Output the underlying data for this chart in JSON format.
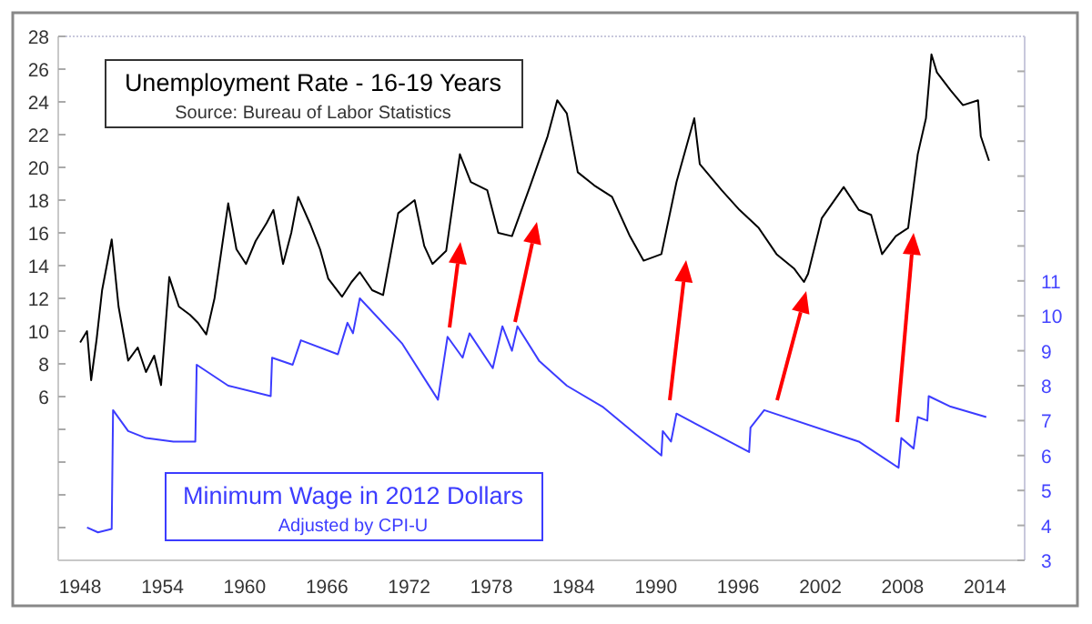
{
  "chart_data": {
    "type": "line",
    "title": "Unemployment Rate - 16-19 Years",
    "subtitle": "Source: Bureau of Labor Statistics",
    "annotations": [
      "Adjusted by CPI-U"
    ],
    "grid": false,
    "xlim": [
      1946.4,
      2016.9
    ],
    "xticks": [
      1948,
      1954,
      1960,
      1966,
      1972,
      1978,
      1984,
      1990,
      1996,
      2002,
      2008,
      2014
    ],
    "ylim": [
      -4,
      28
    ],
    "yticks": [
      {
        "value": -2,
        "label": null
      },
      {
        "value": 0,
        "label": null
      },
      {
        "value": 2,
        "label": null
      },
      {
        "value": 4,
        "label": null
      },
      6,
      8,
      10,
      12,
      14,
      16,
      18,
      20,
      22,
      24,
      26,
      28
    ],
    "y2lim": [
      3,
      18
    ],
    "y2ticks": [
      3,
      4,
      5,
      6,
      7,
      8,
      9,
      10,
      11,
      {
        "value": 12,
        "label": null
      },
      {
        "value": 13,
        "label": null
      },
      {
        "value": 14,
        "label": null
      },
      {
        "value": 15,
        "label": null
      },
      {
        "value": 16,
        "label": null
      },
      {
        "value": 17,
        "label": null
      }
    ],
    "series": [
      {
        "color": "#000000",
        "x": [
          1948.0,
          1948.5,
          1948.8,
          1949.2,
          1949.6,
          1950.3,
          1950.8,
          1951.5,
          1952.2,
          1952.8,
          1953.4,
          1953.9,
          1954.5,
          1955.2,
          1956.0,
          1956.6,
          1957.2,
          1957.8,
          1958.8,
          1959.4,
          1960.1,
          1960.8,
          1961.6,
          1962.1,
          1962.8,
          1963.4,
          1963.9,
          1964.8,
          1965.5,
          1966.1,
          1967.1,
          1967.8,
          1968.4,
          1969.3,
          1970.1,
          1971.2,
          1972.4,
          1973.1,
          1973.7,
          1974.7,
          1975.7,
          1976.5,
          1977.7,
          1978.5,
          1979.5,
          1980.8,
          1982.1,
          1982.8,
          1983.5,
          1984.3,
          1985.5,
          1986.8,
          1988.1,
          1989.1,
          1990.4,
          1991.5,
          1992.8,
          1993.2,
          1994.8,
          1996.1,
          1997.5,
          1998.8,
          2000.1,
          2000.8,
          2001.1,
          2002.1,
          2003.7,
          2004.8,
          2005.7,
          2006.5,
          2007.5,
          2008.4,
          2009.1,
          2009.7,
          2010.1,
          2010.5,
          2011.5,
          2012.4,
          2013.5,
          2013.7,
          2014.3
        ],
        "values": [
          9.3,
          10,
          7,
          9.5,
          12.5,
          15.6,
          11.5,
          8.2,
          9,
          7.5,
          8.5,
          6.7,
          13.3,
          11.5,
          11,
          10.5,
          9.8,
          12,
          17.8,
          15,
          14.1,
          15.5,
          16.6,
          17.4,
          14.1,
          16,
          18.2,
          16.5,
          15,
          13.2,
          12.1,
          13,
          13.6,
          12.5,
          12.2,
          17.2,
          18,
          15.2,
          14.1,
          14.9,
          20.8,
          19.1,
          18.6,
          16,
          15.8,
          18.8,
          21.9,
          24.1,
          23.3,
          19.7,
          18.9,
          18.2,
          15.8,
          14.3,
          14.7,
          19.1,
          23,
          20.2,
          18.6,
          17.4,
          16.3,
          14.7,
          13.8,
          13,
          13.5,
          16.9,
          18.8,
          17.4,
          17.1,
          14.7,
          15.8,
          16.3,
          20.8,
          23,
          26.9,
          25.8,
          24.7,
          23.8,
          24.1,
          21.9,
          20.4
        ]
      },
      {
        "name": "Minimum Wage in 2012 Dollars",
        "color": "#3c3cff",
        "axis": "y2",
        "x": [
          1948.5,
          1949.3,
          1950.3,
          1950.4,
          1951.5,
          1952.8,
          1954.8,
          1956.4,
          1956.5,
          1958.8,
          1961.9,
          1962.0,
          1963.5,
          1964.1,
          1966.8,
          1967.5,
          1967.9,
          1968.4,
          1971.5,
          1974.1,
          1974.8,
          1975.9,
          1976.4,
          1978.1,
          1978.8,
          1979.5,
          1979.9,
          1981.5,
          1983.5,
          1986.1,
          1990.4,
          1990.5,
          1991.1,
          1991.5,
          1996.8,
          1996.9,
          1997.9,
          2004.8,
          2007.7,
          2007.9,
          2008.8,
          2009.1,
          2009.8,
          2009.9,
          2011.5,
          2014.1
        ],
        "values": [
          3.94,
          3.8,
          3.9,
          7.3,
          6.7,
          6.5,
          6.4,
          6.4,
          8.6,
          8.0,
          7.7,
          8.8,
          8.6,
          9.3,
          8.9,
          9.8,
          9.5,
          10.5,
          9.2,
          7.6,
          9.4,
          8.8,
          9.5,
          8.5,
          9.7,
          9.0,
          9.7,
          8.7,
          8.0,
          7.4,
          6.0,
          6.7,
          6.4,
          7.2,
          6.1,
          6.8,
          7.3,
          6.4,
          5.65,
          6.5,
          6.2,
          7.1,
          7.0,
          7.7,
          7.4,
          7.1
        ]
      }
    ]
  }
}
